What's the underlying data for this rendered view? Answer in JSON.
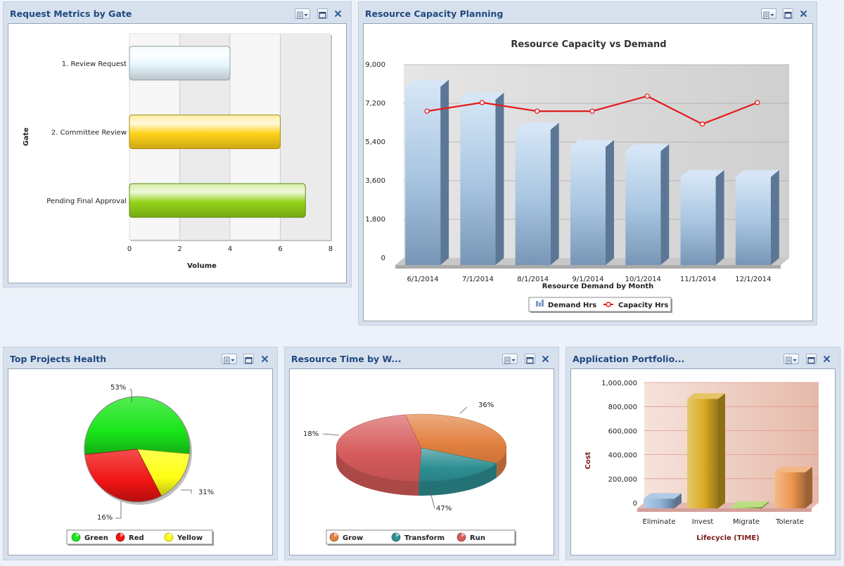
{
  "portlets": {
    "request_metrics": {
      "title": "Request Metrics by Gate"
    },
    "resource_capacity": {
      "title": "Resource Capacity Planning"
    },
    "projects_health": {
      "title": "Top Projects Health"
    },
    "resource_time": {
      "title": "Resource Time by W..."
    },
    "app_portfolio": {
      "title": "Application Portfolio..."
    }
  },
  "icons": {
    "menu": "menu-dropdown-icon",
    "maximize": "maximize-icon",
    "close": "close-icon"
  },
  "chart_data": [
    {
      "id": "request_metrics",
      "type": "bar",
      "orientation": "horizontal",
      "categories": [
        "1. Review Request",
        "2. Committee Review",
        "Pending Final Approval"
      ],
      "values": [
        4,
        6,
        7
      ],
      "colors": [
        "#e6f6fd",
        "#ffd21a",
        "#94d21a"
      ],
      "xlabel": "Volume",
      "ylabel": "Gate",
      "xlim": [
        0,
        8
      ],
      "xticks": [
        "0",
        "2",
        "4",
        "6",
        "8"
      ],
      "grid": true
    },
    {
      "id": "resource_capacity",
      "type": "bar",
      "title": "Resource Capacity vs Demand",
      "xlabel": "Resource Demand by Month",
      "categories": [
        "6/1/2014",
        "7/1/2014",
        "8/1/2014",
        "9/1/2014",
        "10/1/2014",
        "11/1/2014",
        "12/1/2014"
      ],
      "series": [
        {
          "name": "Demand Hrs",
          "type": "bar",
          "values": [
            8300,
            7700,
            6300,
            5500,
            5300,
            4100,
            4100
          ],
          "color": "#a9c6e2"
        },
        {
          "name": "Capacity Hrs",
          "type": "line",
          "values": [
            7000,
            7400,
            7000,
            7000,
            7700,
            6400,
            7400
          ],
          "color": "#e31b1b"
        }
      ],
      "ylim": [
        0,
        9000
      ],
      "yticks": [
        "0",
        "1,800",
        "3,600",
        "5,400",
        "7,200",
        "9,000"
      ],
      "grid": true,
      "legend": "bottom"
    },
    {
      "id": "projects_health",
      "type": "pie",
      "categories": [
        "Green",
        "Red",
        "Yellow"
      ],
      "values": [
        53,
        31,
        16
      ],
      "labels": [
        "53%",
        "31%",
        "16%"
      ],
      "colors": [
        "#19e619",
        "#f01414",
        "#ffff14"
      ],
      "legend": "bottom"
    },
    {
      "id": "resource_time",
      "type": "pie",
      "categories": [
        "Grow",
        "Transform",
        "Run"
      ],
      "values": [
        36,
        18,
        47
      ],
      "labels": [
        "36%",
        "18%",
        "47%"
      ],
      "colors": [
        "#e1803f",
        "#2d8f93",
        "#d65a5a"
      ],
      "legend": "bottom"
    },
    {
      "id": "app_portfolio",
      "type": "bar",
      "categories": [
        "Eliminate",
        "Invest",
        "Migrate",
        "Tolerate"
      ],
      "values": [
        80000,
        910000,
        10000,
        300000
      ],
      "colors": [
        "#8fb3d9",
        "#d9aa22",
        "#9cd14a",
        "#ee9750"
      ],
      "xlabel": "Lifecycle (TIME)",
      "ylabel": "Cost",
      "ylim": [
        0,
        1000000
      ],
      "yticks": [
        "0",
        "200,000",
        "400,000",
        "600,000",
        "800,000",
        "1,000,000"
      ],
      "grid": true
    }
  ]
}
